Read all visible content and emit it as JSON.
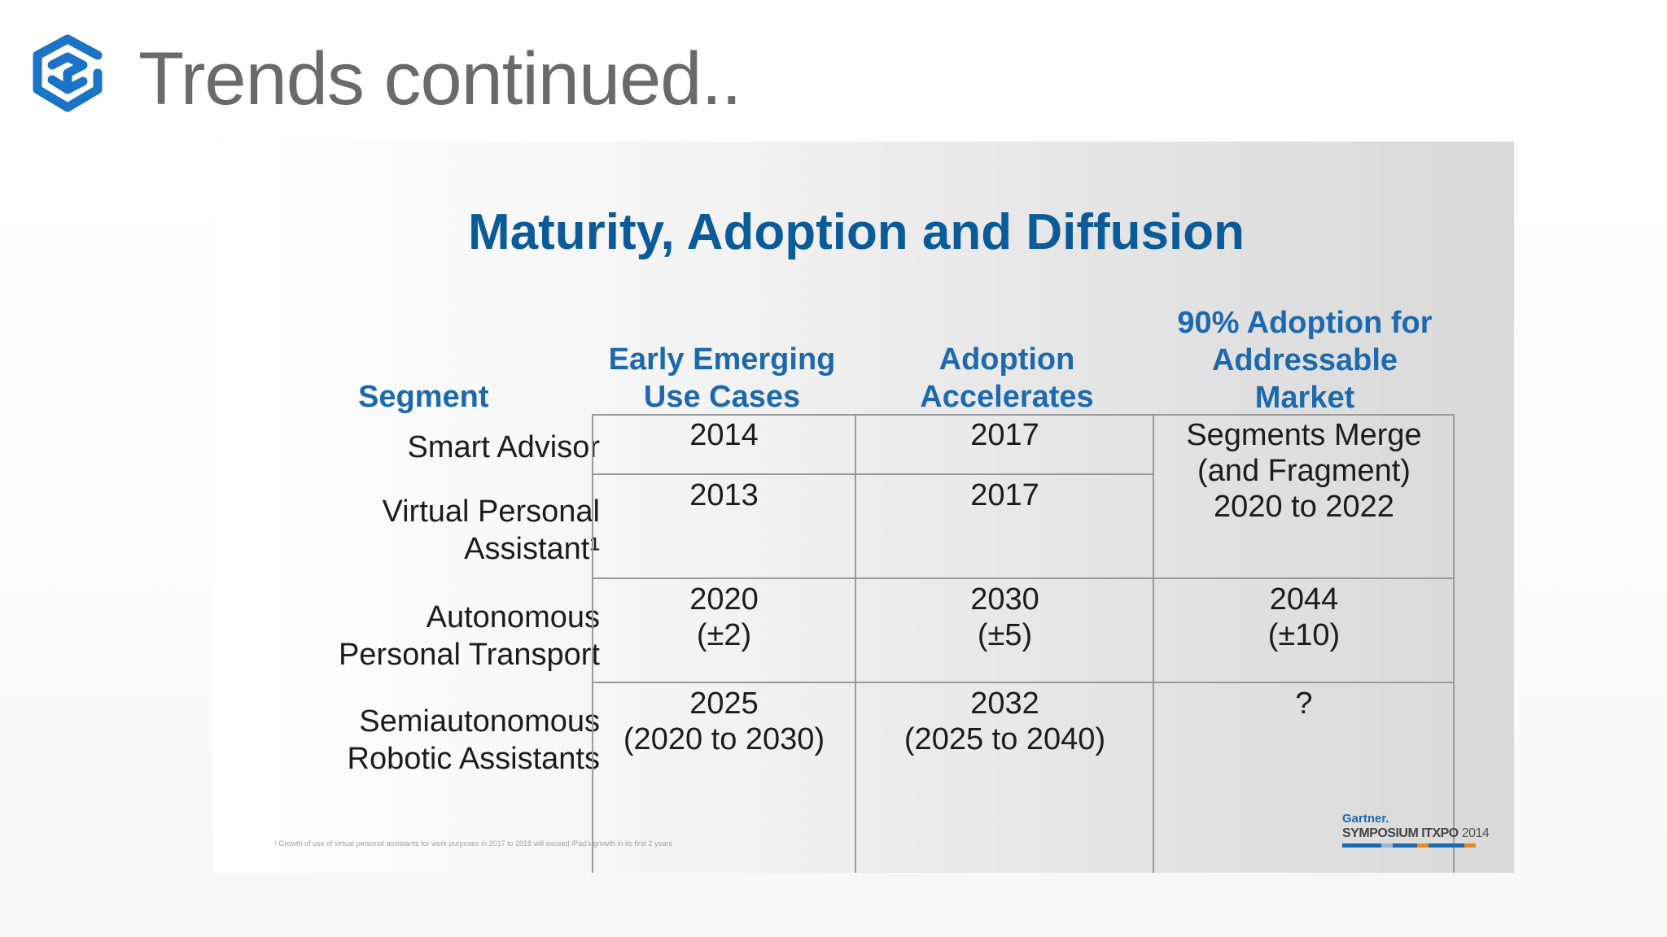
{
  "header": {
    "title": "Trends continued.."
  },
  "slide": {
    "title": "Maturity, Adoption and Diffusion",
    "columns": {
      "segment": "Segment",
      "early": [
        "Early Emerging",
        "Use Cases"
      ],
      "adoption": [
        "Adoption",
        "Accelerates"
      ],
      "ninety": [
        "90% Adoption for",
        "Addressable",
        "Market"
      ]
    },
    "rows": [
      {
        "label": [
          "Smart Advisor"
        ],
        "early": [
          "2014"
        ],
        "adoption": [
          "2017"
        ]
      },
      {
        "label": [
          "Virtual Personal",
          "Assistant¹"
        ],
        "early": [
          "2013"
        ],
        "adoption": [
          "2017"
        ]
      },
      {
        "label": [
          "Autonomous",
          "Personal Transport"
        ],
        "early": [
          "2020",
          "(±2)"
        ],
        "adoption": [
          "2030",
          "(±5)"
        ],
        "ninety": [
          "2044",
          "(±10)"
        ]
      },
      {
        "label": [
          "Semiautonomous",
          "Robotic Assistants"
        ],
        "early": [
          "2025",
          "(2020 to 2030)"
        ],
        "adoption": [
          "2032",
          "(2025 to 2040)"
        ],
        "ninety": [
          "?"
        ]
      }
    ],
    "merged_cell": [
      "Segments Merge",
      "(and Fragment)",
      "2020 to 2022"
    ],
    "footnote": "¹ Growth of use of virtual personal assistants for work purposes in 2017 to 2018 will exceed iPad's growth in its first 2 years",
    "brand": {
      "top": "Gartner.",
      "bottom": "SYMPOSIUM ITXPO",
      "year": "2014"
    }
  },
  "colors": {
    "title_blue": "#0b5b99",
    "header_blue": "#1d69ad",
    "logo_blue": "#1a73c4",
    "title_gray": "#6a6a6a"
  }
}
